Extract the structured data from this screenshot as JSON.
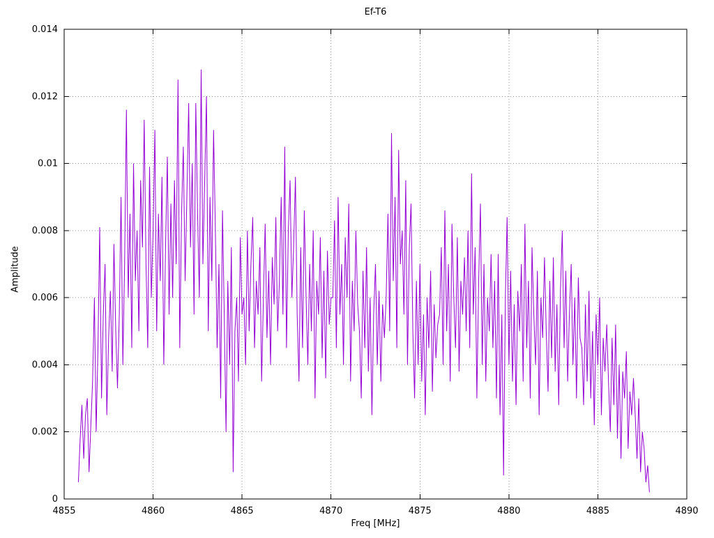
{
  "title": "Ef-T6",
  "xlabel": "Freq [MHz]",
  "ylabel": "Amplitude",
  "chart_data": {
    "type": "line",
    "title": "Ef-T6",
    "xlabel": "Freq [MHz]",
    "ylabel": "Amplitude",
    "xlim": [
      4855,
      4890
    ],
    "ylim": [
      0,
      0.014
    ],
    "xticks": [
      4855,
      4860,
      4865,
      4870,
      4875,
      4880,
      4885,
      4890
    ],
    "xtick_labels": [
      "4855",
      "4860",
      "4865",
      "4870",
      "4875",
      "4880",
      "4885",
      "4890"
    ],
    "yticks": [
      0,
      0.002,
      0.004,
      0.006,
      0.008,
      0.01,
      0.012,
      0.014
    ],
    "ytick_labels": [
      "0",
      "0.002",
      "0.004",
      "0.006",
      "0.008",
      "0.01",
      "0.012",
      "0.014"
    ],
    "grid": true,
    "legend": "none",
    "line_color": "#9400d3",
    "x_start": 4855.8,
    "x_step": 0.1,
    "amplitude_scale": 0.0001,
    "amplitudes": [
      5,
      18,
      28,
      12,
      25,
      30,
      8,
      22,
      35,
      60,
      20,
      45,
      81,
      30,
      55,
      70,
      25,
      48,
      62,
      38,
      76,
      50,
      33,
      55,
      90,
      40,
      70,
      116,
      60,
      85,
      45,
      100,
      65,
      80,
      50,
      95,
      75,
      113,
      70,
      45,
      99,
      60,
      80,
      110,
      50,
      85,
      65,
      96,
      40,
      75,
      102,
      55,
      88,
      60,
      95,
      70,
      125,
      45,
      85,
      105,
      65,
      90,
      118,
      75,
      100,
      55,
      118,
      85,
      60,
      128,
      70,
      95,
      120,
      50,
      90,
      65,
      110,
      80,
      45,
      70,
      30,
      86,
      55,
      20,
      65,
      40,
      75,
      8,
      50,
      60,
      35,
      78,
      55,
      60,
      40,
      80,
      50,
      70,
      84,
      45,
      65,
      55,
      75,
      35,
      60,
      82,
      48,
      68,
      40,
      72,
      58,
      84,
      50,
      65,
      90,
      55,
      105,
      45,
      80,
      95,
      60,
      75,
      96,
      55,
      35,
      75,
      45,
      86,
      60,
      40,
      70,
      50,
      80,
      30,
      65,
      55,
      78,
      42,
      68,
      36,
      74,
      52,
      60,
      60,
      83,
      45,
      90,
      55,
      70,
      40,
      78,
      60,
      88,
      35,
      65,
      50,
      80,
      58,
      50,
      30,
      68,
      45,
      75,
      38,
      60,
      25,
      55,
      70,
      40,
      62,
      35,
      58,
      48,
      60,
      85,
      50,
      109,
      65,
      90,
      45,
      104,
      70,
      80,
      55,
      95,
      40,
      75,
      88,
      50,
      30,
      65,
      40,
      70,
      35,
      55,
      25,
      60,
      45,
      68,
      32,
      58,
      42,
      52,
      55,
      75,
      40,
      86,
      50,
      70,
      35,
      82,
      60,
      45,
      78,
      38,
      65,
      55,
      72,
      50,
      80,
      45,
      97,
      55,
      75,
      30,
      65,
      88,
      40,
      70,
      35,
      60,
      50,
      73,
      45,
      65,
      30,
      73,
      25,
      55,
      7,
      60,
      84,
      40,
      68,
      35,
      58,
      28,
      62,
      50,
      70,
      35,
      82,
      45,
      65,
      30,
      75,
      55,
      40,
      68,
      25,
      60,
      48,
      72,
      50,
      32,
      65,
      42,
      72,
      38,
      58,
      28,
      62,
      80,
      45,
      68,
      35,
      55,
      70,
      40,
      60,
      30,
      66,
      48,
      45,
      28,
      58,
      35,
      62,
      30,
      50,
      22,
      55,
      40,
      60,
      25,
      48,
      38,
      52,
      35,
      20,
      48,
      28,
      52,
      18,
      40,
      12,
      38,
      30,
      44,
      15,
      32,
      25,
      36,
      25,
      12,
      30,
      8,
      20,
      15,
      5,
      10,
      2
    ]
  }
}
